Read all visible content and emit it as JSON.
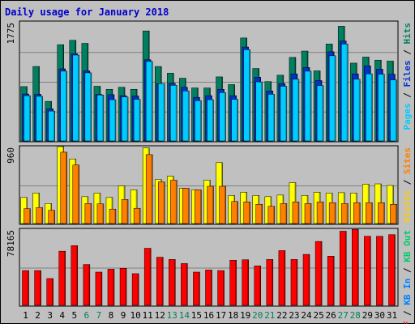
{
  "chart_data": {
    "type": "bar",
    "title": "Daily usage for January 2018",
    "categories": [
      "1",
      "2",
      "3",
      "4",
      "5",
      "6",
      "7",
      "8",
      "9",
      "10",
      "11",
      "12",
      "13",
      "14",
      "15",
      "16",
      "17",
      "18",
      "19",
      "20",
      "21",
      "22",
      "23",
      "24",
      "25",
      "26",
      "27",
      "28",
      "29",
      "30",
      "31"
    ],
    "weekend_days": [
      "6",
      "7",
      "13",
      "14",
      "20",
      "21",
      "27",
      "28"
    ],
    "panels": [
      {
        "id": "top",
        "max_label": "1775",
        "ymax": 1775,
        "right_label_parts": [
          {
            "text": "Pages",
            "color": "#00ccff"
          },
          {
            "text": " / ",
            "color": "#000000"
          },
          {
            "text": "Files",
            "color": "#0033cc"
          },
          {
            "text": " / ",
            "color": "#000000"
          },
          {
            "text": "Hits",
            "color": "#008060"
          }
        ],
        "series": [
          {
            "name": "Hits",
            "color": "#008060",
            "values": [
              810,
              1110,
              590,
              1435,
              1500,
              1455,
              815,
              770,
              800,
              770,
              1640,
              1110,
              1010,
              935,
              790,
              790,
              955,
              840,
              1535,
              1080,
              885,
              980,
              1245,
              1340,
              1045,
              1445,
              1710,
              1160,
              1250,
              1205,
              1190
            ]
          },
          {
            "name": "Files",
            "color": "#0033cc",
            "values": [
              700,
              695,
              480,
              1075,
              1300,
              1045,
              695,
              690,
              675,
              670,
              1210,
              855,
              860,
              800,
              650,
              675,
              770,
              675,
              1400,
              950,
              745,
              855,
              1000,
              1095,
              900,
              1330,
              1490,
              1000,
              1120,
              1070,
              995
            ]
          },
          {
            "name": "Pages",
            "color": "#00ccff",
            "values": [
              675,
              665,
              445,
              1040,
              1280,
              1015,
              685,
              615,
              655,
              620,
              1185,
              855,
              830,
              745,
              600,
              615,
              720,
              620,
              1360,
              880,
              695,
              815,
              920,
              1040,
              825,
              1270,
              1445,
              920,
              1000,
              995,
              910
            ]
          }
        ]
      },
      {
        "id": "middle",
        "max_label": "960",
        "ymax": 960,
        "right_label_parts": [
          {
            "text": "Visits",
            "color": "#ffcc00"
          },
          {
            "text": " / ",
            "color": "#000000"
          },
          {
            "text": "Sites",
            "color": "#ff8000"
          }
        ],
        "series": [
          {
            "name": "Visits",
            "color": "#ffff00",
            "values": [
              325,
              380,
              250,
              960,
              805,
              335,
              380,
              325,
              470,
              420,
              945,
              550,
              590,
              440,
              420,
              540,
              760,
              350,
              390,
              350,
              335,
              355,
              510,
              350,
              390,
              380,
              385,
              380,
              490,
              495,
              475
            ]
          },
          {
            "name": "Sites",
            "color": "#ff8000",
            "values": [
              185,
              200,
              165,
              890,
              730,
              250,
              245,
              180,
              300,
              190,
              860,
              520,
              540,
              440,
              420,
              465,
              465,
              275,
              270,
              240,
              215,
              250,
              270,
              250,
              270,
              260,
              250,
              260,
              260,
              260,
              240
            ]
          }
        ]
      },
      {
        "id": "bottom",
        "max_label": "78165",
        "ymax": 78165,
        "right_label_parts": [
          {
            "text": "KB F",
            "color": "#ff0000"
          },
          {
            "text": " / ",
            "color": "#000000"
          },
          {
            "text": "KB In",
            "color": "#0080ff"
          },
          {
            "text": " / ",
            "color": "#000000"
          },
          {
            "text": "KB Out",
            "color": "#00cc66"
          }
        ],
        "series": [
          {
            "name": "KB F",
            "color": "#ff0000",
            "values": [
              35700,
              35700,
              27500,
              55600,
              61300,
              41900,
              34100,
              37100,
              38000,
              32500,
              58600,
              49400,
              47100,
              42900,
              34100,
              36300,
              35700,
              46300,
              46800,
              40500,
              47100,
              56200,
              47100,
              52300,
              65600,
              50500,
              76100,
              78000,
              70900,
              70900,
              72600
            ]
          }
        ]
      }
    ]
  }
}
